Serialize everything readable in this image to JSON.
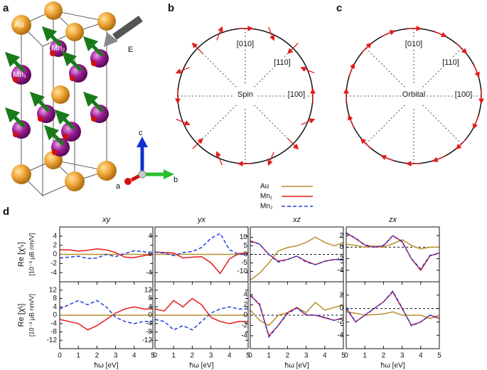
{
  "panel_labels": [
    "a",
    "b",
    "c",
    "d"
  ],
  "structure": {
    "atom_labels": [
      "Au",
      "Mn₂",
      "Mn₁"
    ],
    "field_label": "E",
    "axes": [
      "c",
      "b",
      "a"
    ]
  },
  "spin_panel": {
    "center": "Spin",
    "directions": [
      "[010]",
      "[110]",
      "[100]"
    ]
  },
  "orbital_panel": {
    "center": "Orbital",
    "directions": [
      "[010]",
      "[110]",
      "[100]"
    ]
  },
  "chart_data": [
    {
      "type": "line",
      "title": "xy",
      "ylabel": [
        "Re [χᴵₛ]",
        "[10⁻³ μB nm/V]"
      ],
      "x": [
        0,
        0.5,
        1,
        1.5,
        2,
        2.5,
        3,
        3.5,
        4,
        4.5,
        5
      ],
      "xlim": [
        0,
        5
      ],
      "ylim": [
        -6,
        6
      ],
      "yticks": [
        -4,
        -2,
        0,
        2,
        4
      ],
      "series": [
        {
          "name": "Au",
          "color": "#b8902a",
          "values": [
            0,
            0,
            0,
            0,
            0,
            0,
            0,
            0,
            0,
            0,
            0
          ]
        },
        {
          "name": "Mn₁",
          "color": "#e31a1c",
          "values": [
            1,
            1,
            0.7,
            0.9,
            1.2,
            1,
            0.4,
            -0.6,
            -0.7,
            -0.3,
            0
          ]
        },
        {
          "name": "Mn₂",
          "color": "#1f3fdf",
          "dashed": true,
          "values": [
            -0.8,
            -0.6,
            -0.4,
            -0.9,
            -0.8,
            0,
            -0.5,
            0.2,
            0.8,
            0.6,
            0.1
          ]
        }
      ]
    },
    {
      "type": "line",
      "title": "yx",
      "x": [
        0,
        0.5,
        1,
        1.5,
        2,
        2.5,
        3,
        3.5,
        4,
        4.5,
        5
      ],
      "xlim": [
        0,
        5
      ],
      "ylim": [
        -6,
        6
      ],
      "yticks": [
        -4,
        0,
        4
      ],
      "series": [
        {
          "name": "Au",
          "color": "#b8902a",
          "values": [
            0,
            0,
            0,
            0,
            0,
            0,
            0,
            0,
            0,
            0,
            0
          ]
        },
        {
          "name": "Mn₁",
          "color": "#e31a1c",
          "values": [
            0.5,
            0.4,
            0.3,
            -0.8,
            -0.6,
            -0.5,
            -1.8,
            -4.2,
            -1,
            0.2,
            0.3
          ]
        },
        {
          "name": "Mn₂",
          "color": "#1f3fdf",
          "dashed": true,
          "values": [
            0.5,
            0.3,
            -0.3,
            0.4,
            0.6,
            1.5,
            3.5,
            4.6,
            1,
            0,
            0
          ]
        }
      ]
    },
    {
      "type": "line",
      "title": "xz",
      "x": [
        0,
        0.5,
        1,
        1.5,
        2,
        2.5,
        3,
        3.5,
        4,
        4.5,
        5
      ],
      "xlim": [
        0,
        5
      ],
      "ylim": [
        -16,
        16
      ],
      "yticks": [
        -10,
        -5,
        0,
        5,
        10
      ],
      "hline": 0,
      "series": [
        {
          "name": "Au",
          "color": "#b8902a",
          "values": [
            -15,
            -11,
            -5,
            2,
            4,
            5,
            7,
            10,
            7,
            5,
            7
          ]
        },
        {
          "name": "Mn₁",
          "color": "#e31a1c",
          "values": [
            8,
            6,
            0,
            -4,
            -3,
            -1,
            -4,
            -6,
            -4,
            -3,
            -3
          ]
        },
        {
          "name": "Mn₂",
          "color": "#1f3fdf",
          "dashed": true,
          "values": [
            7.5,
            6,
            0,
            -4.5,
            -3,
            -1,
            -4.5,
            -6,
            -4,
            -3,
            -3
          ]
        }
      ]
    },
    {
      "type": "line",
      "title": "zx",
      "x": [
        0,
        0.5,
        1,
        1.5,
        2,
        2.5,
        3,
        3.5,
        4,
        4.5,
        5
      ],
      "xlim": [
        0,
        5
      ],
      "ylim": [
        -6,
        3.5
      ],
      "yticks": [
        -4,
        -2,
        0,
        2
      ],
      "hline": 0,
      "series": [
        {
          "name": "Au",
          "color": "#b8902a",
          "values": [
            0.5,
            0.3,
            0,
            0.2,
            0,
            0.6,
            1.3,
            0.3,
            -0.3,
            0,
            0
          ]
        },
        {
          "name": "Mn₁",
          "color": "#e31a1c",
          "values": [
            2.5,
            1.5,
            0.4,
            0,
            0.2,
            2,
            1,
            -2,
            -4,
            -1.5,
            -1
          ]
        },
        {
          "name": "Mn₂",
          "color": "#1f3fdf",
          "dashed": true,
          "values": [
            2.4,
            1.6,
            0.3,
            0,
            0.3,
            2,
            0.9,
            -2,
            -3.8,
            -1.4,
            -1.1
          ]
        }
      ]
    },
    {
      "type": "line",
      "ylabel": [
        "Re [χᴵₗ]",
        "[10⁻³ μB nm/V]"
      ],
      "xlabel": "ħω [eV]",
      "x": [
        0,
        0.5,
        1,
        1.5,
        2,
        2.5,
        3,
        3.5,
        4,
        4.5,
        5
      ],
      "xlim": [
        0,
        5
      ],
      "xticks": [
        0,
        1,
        2,
        3,
        4,
        5
      ],
      "ylim": [
        -16,
        16
      ],
      "yticks": [
        -12,
        -8,
        -4,
        0,
        4,
        8,
        12
      ],
      "series": [
        {
          "name": "Au",
          "color": "#b8902a",
          "values": [
            0,
            0,
            0,
            0,
            0,
            0,
            0,
            0,
            0,
            0,
            0
          ]
        },
        {
          "name": "Mn₁",
          "color": "#e31a1c",
          "values": [
            -2,
            -3,
            -4,
            -7,
            -5,
            -2,
            1,
            3,
            4,
            3,
            3
          ]
        },
        {
          "name": "Mn₂",
          "color": "#1f3fdf",
          "dashed": true,
          "values": [
            3,
            5,
            7,
            5,
            7,
            4,
            -1,
            -3,
            -4,
            -3,
            -3
          ]
        }
      ]
    },
    {
      "type": "line",
      "xlabel": "ħω [eV]",
      "x": [
        0,
        0.5,
        1,
        1.5,
        2,
        2.5,
        3,
        3.5,
        4,
        4.5,
        5
      ],
      "xlim": [
        0,
        5
      ],
      "xticks": [
        0,
        1,
        2,
        3,
        4,
        5
      ],
      "ylim": [
        -16,
        16
      ],
      "yticks": [
        -12,
        -8,
        -4,
        0,
        4,
        8,
        12
      ],
      "series": [
        {
          "name": "Au",
          "color": "#b8902a",
          "values": [
            0,
            0,
            0,
            0,
            0,
            0,
            0,
            0,
            0,
            0,
            0
          ]
        },
        {
          "name": "Mn₁",
          "color": "#e31a1c",
          "values": [
            3,
            2,
            7,
            4,
            8,
            5,
            -1,
            -3,
            -4,
            -3,
            -3
          ]
        },
        {
          "name": "Mn₂",
          "color": "#1f3fdf",
          "dashed": true,
          "values": [
            -2,
            -3,
            -7,
            -5,
            -7,
            -3,
            1,
            3,
            4,
            3,
            3
          ]
        }
      ]
    },
    {
      "type": "line",
      "xlabel": "ħω [eV]",
      "x": [
        0,
        0.5,
        1,
        1.5,
        2,
        2.5,
        3,
        3.5,
        4,
        4.5,
        5
      ],
      "xlim": [
        0,
        5
      ],
      "xticks": [
        0,
        1,
        2,
        3,
        4,
        5
      ],
      "ylim": [
        -6.5,
        6.5
      ],
      "yticks": [
        -4,
        -2,
        0,
        2,
        4
      ],
      "hline": 0,
      "series": [
        {
          "name": "Au",
          "color": "#b8902a",
          "values": [
            1,
            -1,
            -2,
            0,
            0.5,
            1.5,
            0.5,
            2.5,
            1,
            1.5,
            2
          ]
        },
        {
          "name": "Mn₁",
          "color": "#e31a1c",
          "values": [
            4,
            2,
            -4,
            -2,
            0.5,
            1.5,
            0,
            0,
            -0.5,
            -1,
            -0.5
          ]
        },
        {
          "name": "Mn₂",
          "color": "#1f3fdf",
          "dashed": true,
          "values": [
            3.8,
            2.2,
            -4.2,
            -2,
            0.3,
            1.4,
            0.1,
            0,
            -0.4,
            -1,
            -0.6
          ]
        }
      ]
    },
    {
      "type": "line",
      "xlabel": "ħω [eV]",
      "x": [
        0,
        0.5,
        1,
        1.5,
        2,
        2.5,
        3,
        3.5,
        4,
        4.5,
        5
      ],
      "xlim": [
        0,
        5
      ],
      "xticks": [
        0,
        1,
        2,
        3,
        4,
        5
      ],
      "ylim": [
        -6,
        4
      ],
      "yticks": [
        -4,
        -2,
        0,
        2
      ],
      "hline": 0,
      "series": [
        {
          "name": "Au",
          "color": "#b8902a",
          "values": [
            -0.5,
            -0.7,
            -1,
            -0.9,
            -0.8,
            -0.5,
            -1,
            -1,
            -1,
            -1.5,
            -1
          ]
        },
        {
          "name": "Mn₁",
          "color": "#e31a1c",
          "values": [
            0,
            -2,
            -1,
            0,
            1,
            2.5,
            0,
            -2.5,
            -2,
            -1,
            -1.5
          ]
        },
        {
          "name": "Mn₂",
          "color": "#1f3fdf",
          "dashed": true,
          "values": [
            0.2,
            -2,
            -1,
            0,
            1,
            2.6,
            0.1,
            -2.6,
            -2,
            -1,
            -1.4
          ]
        }
      ]
    }
  ]
}
